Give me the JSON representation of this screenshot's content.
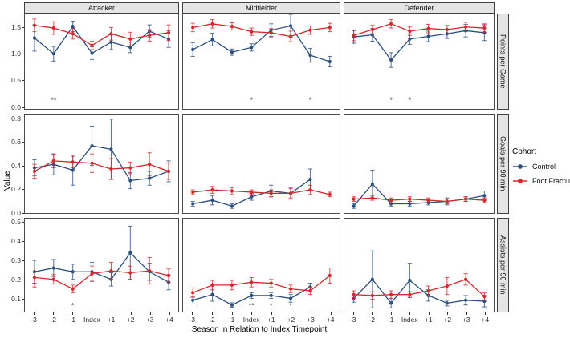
{
  "chart_data": {
    "type": "line",
    "title": "",
    "xlabel": "Season in Relation to Index Timepoint",
    "ylabel": "Value",
    "categories": [
      "-3",
      "-2",
      "-1",
      "Index",
      "+1",
      "+2",
      "+3",
      "+4"
    ],
    "facet_columns": [
      "Attacker",
      "Midfielder",
      "Defender"
    ],
    "facet_rows": [
      "Points per Game",
      "Goals per 90 min",
      "Assists per 90 min"
    ],
    "grid": "off",
    "legend": {
      "title": "Cohort",
      "position": "right",
      "entries": [
        {
          "name": "Control",
          "color": "#2b4f80"
        },
        {
          "name": "Foot Fracture",
          "color": "#d3292d"
        }
      ]
    },
    "rows": [
      {
        "label": "Points per Game",
        "ylim": [
          -0.05,
          1.75
        ],
        "yticks": [
          0.0,
          0.5,
          1.0,
          1.5
        ],
        "ytick_labels": [
          "0.0",
          "0.5",
          "1.0",
          "1.5"
        ],
        "sig_y": 0.07,
        "panels": [
          {
            "column": "Attacker",
            "series": [
              {
                "name": "Control",
                "values": [
                  1.3,
                  1.0,
                  1.52,
                  1.01,
                  1.22,
                  1.12,
                  1.43,
                  1.28
                ],
                "errors": [
                  0.25,
                  0.14,
                  0.1,
                  0.12,
                  0.14,
                  0.1,
                  0.12,
                  0.16
                ]
              },
              {
                "name": "Foot Fracture",
                "values": [
                  1.54,
                  1.49,
                  1.38,
                  1.16,
                  1.38,
                  1.28,
                  1.35,
                  1.4
                ],
                "errors": [
                  0.12,
                  0.12,
                  0.1,
                  0.08,
                  0.12,
                  0.13,
                  0.11,
                  0.15
                ]
              }
            ],
            "significance": [
              {
                "category": "-2",
                "label": "**"
              }
            ]
          },
          {
            "column": "Midfielder",
            "series": [
              {
                "name": "Control",
                "values": [
                  1.08,
                  1.27,
                  1.03,
                  1.12,
                  1.45,
                  1.53,
                  0.97,
                  0.85
                ],
                "errors": [
                  0.13,
                  0.12,
                  0.06,
                  0.07,
                  0.12,
                  0.22,
                  0.13,
                  0.1
                ]
              },
              {
                "name": "Foot Fracture",
                "values": [
                  1.5,
                  1.57,
                  1.52,
                  1.42,
                  1.4,
                  1.33,
                  1.45,
                  1.5
                ],
                "errors": [
                  0.08,
                  0.08,
                  0.07,
                  0.07,
                  0.08,
                  0.1,
                  0.08,
                  0.08
                ]
              }
            ],
            "significance": [
              {
                "category": "Index",
                "label": "*"
              },
              {
                "category": "+3",
                "label": "*"
              }
            ]
          },
          {
            "column": "Defender",
            "series": [
              {
                "name": "Control",
                "values": [
                  1.32,
                  1.36,
                  0.88,
                  1.28,
                  1.33,
                  1.38,
                  1.44,
                  1.4
                ],
                "errors": [
                  0.12,
                  0.12,
                  0.14,
                  0.1,
                  0.1,
                  0.09,
                  0.12,
                  0.15
                ]
              },
              {
                "name": "Foot Fracture",
                "values": [
                  1.35,
                  1.46,
                  1.57,
                  1.43,
                  1.48,
                  1.46,
                  1.51,
                  1.49
                ],
                "errors": [
                  0.1,
                  0.08,
                  0.08,
                  0.08,
                  0.08,
                  0.08,
                  0.09,
                  0.08
                ]
              }
            ],
            "significance": [
              {
                "category": "-1",
                "label": "*"
              },
              {
                "category": "Index",
                "label": "*"
              }
            ]
          }
        ]
      },
      {
        "label": "Goals per 90 min",
        "ylim": [
          -0.01,
          0.84
        ],
        "yticks": [
          0.0,
          0.2,
          0.4,
          0.6,
          0.8
        ],
        "ytick_labels": [
          "0.0",
          "0.2",
          "0.4",
          "0.6",
          "0.8"
        ],
        "sig_y": 0.03,
        "panels": [
          {
            "column": "Attacker",
            "series": [
              {
                "name": "Control",
                "values": [
                  0.38,
                  0.41,
                  0.36,
                  0.57,
                  0.54,
                  0.27,
                  0.29,
                  0.35
                ],
                "errors": [
                  0.07,
                  0.09,
                  0.13,
                  0.17,
                  0.26,
                  0.07,
                  0.06,
                  0.09
                ]
              },
              {
                "name": "Foot Fracture",
                "values": [
                  0.35,
                  0.44,
                  0.43,
                  0.42,
                  0.37,
                  0.38,
                  0.41,
                  0.35
                ],
                "errors": [
                  0.06,
                  0.06,
                  0.05,
                  0.08,
                  0.09,
                  0.05,
                  0.1,
                  0.07
                ]
              }
            ],
            "significance": []
          },
          {
            "column": "Midfielder",
            "series": [
              {
                "name": "Control",
                "values": [
                  0.07,
                  0.1,
                  0.05,
                  0.13,
                  0.18,
                  0.16,
                  0.28,
                  null
                ],
                "errors": [
                  0.02,
                  0.04,
                  0.02,
                  0.03,
                  0.05,
                  0.05,
                  0.09,
                  null
                ]
              },
              {
                "name": "Foot Fracture",
                "values": [
                  0.17,
                  0.19,
                  0.18,
                  0.17,
                  0.16,
                  0.16,
                  0.19,
                  0.15
                ],
                "errors": [
                  0.02,
                  0.03,
                  0.03,
                  0.02,
                  0.03,
                  0.04,
                  0.04,
                  0.02
                ]
              }
            ],
            "significance": []
          },
          {
            "column": "Defender",
            "series": [
              {
                "name": "Control",
                "values": [
                  0.05,
                  0.24,
                  0.07,
                  0.07,
                  0.08,
                  0.09,
                  0.11,
                  0.14
                ],
                "errors": [
                  0.02,
                  0.12,
                  0.02,
                  0.02,
                  0.02,
                  0.03,
                  0.02,
                  0.04
                ]
              },
              {
                "name": "Foot Fracture",
                "values": [
                  0.11,
                  0.12,
                  0.1,
                  0.11,
                  0.1,
                  0.09,
                  0.11,
                  0.1
                ],
                "errors": [
                  0.02,
                  0.02,
                  0.02,
                  0.02,
                  0.02,
                  0.02,
                  0.02,
                  0.02
                ]
              }
            ],
            "significance": []
          }
        ]
      },
      {
        "label": "Assists per 90 min",
        "ylim": [
          0.03,
          0.52
        ],
        "yticks": [
          0.1,
          0.2,
          0.3,
          0.4,
          0.5
        ],
        "ytick_labels": [
          "0.1",
          "0.2",
          "0.3",
          "0.4",
          "0.5"
        ],
        "sig_y": 0.05,
        "panels": [
          {
            "column": "Attacker",
            "series": [
              {
                "name": "Control",
                "values": [
                  0.24,
                  0.26,
                  0.24,
                  0.24,
                  0.2,
                  0.34,
                  0.24,
                  0.185
                ],
                "errors": [
                  0.06,
                  0.045,
                  0.04,
                  0.05,
                  0.035,
                  0.14,
                  0.045,
                  0.04
                ]
              },
              {
                "name": "Foot Fracture",
                "values": [
                  0.21,
                  0.2,
                  0.15,
                  0.23,
                  0.245,
                  0.235,
                  0.245,
                  0.22
                ],
                "errors": [
                  0.05,
                  0.025,
                  0.02,
                  0.04,
                  0.045,
                  0.035,
                  0.07,
                  0.035
                ]
              }
            ],
            "significance": [
              {
                "category": "-1",
                "label": "*"
              }
            ]
          },
          {
            "column": "Midfielder",
            "series": [
              {
                "name": "Control",
                "values": [
                  0.09,
                  0.12,
                  0.065,
                  0.115,
                  0.115,
                  0.1,
                  0.16,
                  null
                ],
                "errors": [
                  0.02,
                  0.035,
                  0.012,
                  0.015,
                  0.015,
                  0.02,
                  0.02,
                  null
                ]
              },
              {
                "name": "Foot Fracture",
                "values": [
                  0.13,
                  0.17,
                  0.17,
                  0.185,
                  0.18,
                  0.15,
                  0.14,
                  0.22
                ],
                "errors": [
                  0.025,
                  0.025,
                  0.025,
                  0.025,
                  0.02,
                  0.02,
                  0.02,
                  0.04
                ]
              }
            ],
            "significance": [
              {
                "category": "Index",
                "label": "**"
              },
              {
                "category": "+1",
                "label": "*"
              },
              {
                "category": "+2",
                "label": "*"
              }
            ]
          },
          {
            "column": "Defender",
            "series": [
              {
                "name": "Control",
                "values": [
                  0.1,
                  0.2,
                  0.075,
                  0.195,
                  0.115,
                  0.075,
                  0.09,
                  0.085
                ],
                "errors": [
                  0.02,
                  0.15,
                  0.025,
                  0.09,
                  0.03,
                  0.015,
                  0.025,
                  0.03
                ]
              },
              {
                "name": "Foot Fracture",
                "values": [
                  0.12,
                  0.115,
                  0.12,
                  0.12,
                  0.14,
                  0.165,
                  0.2,
                  0.11
                ],
                "errors": [
                  0.02,
                  0.02,
                  0.02,
                  0.015,
                  0.025,
                  0.045,
                  0.03,
                  0.02
                ]
              }
            ],
            "significance": [
              {
                "category": "+3",
                "label": "*"
              }
            ]
          }
        ]
      }
    ]
  }
}
